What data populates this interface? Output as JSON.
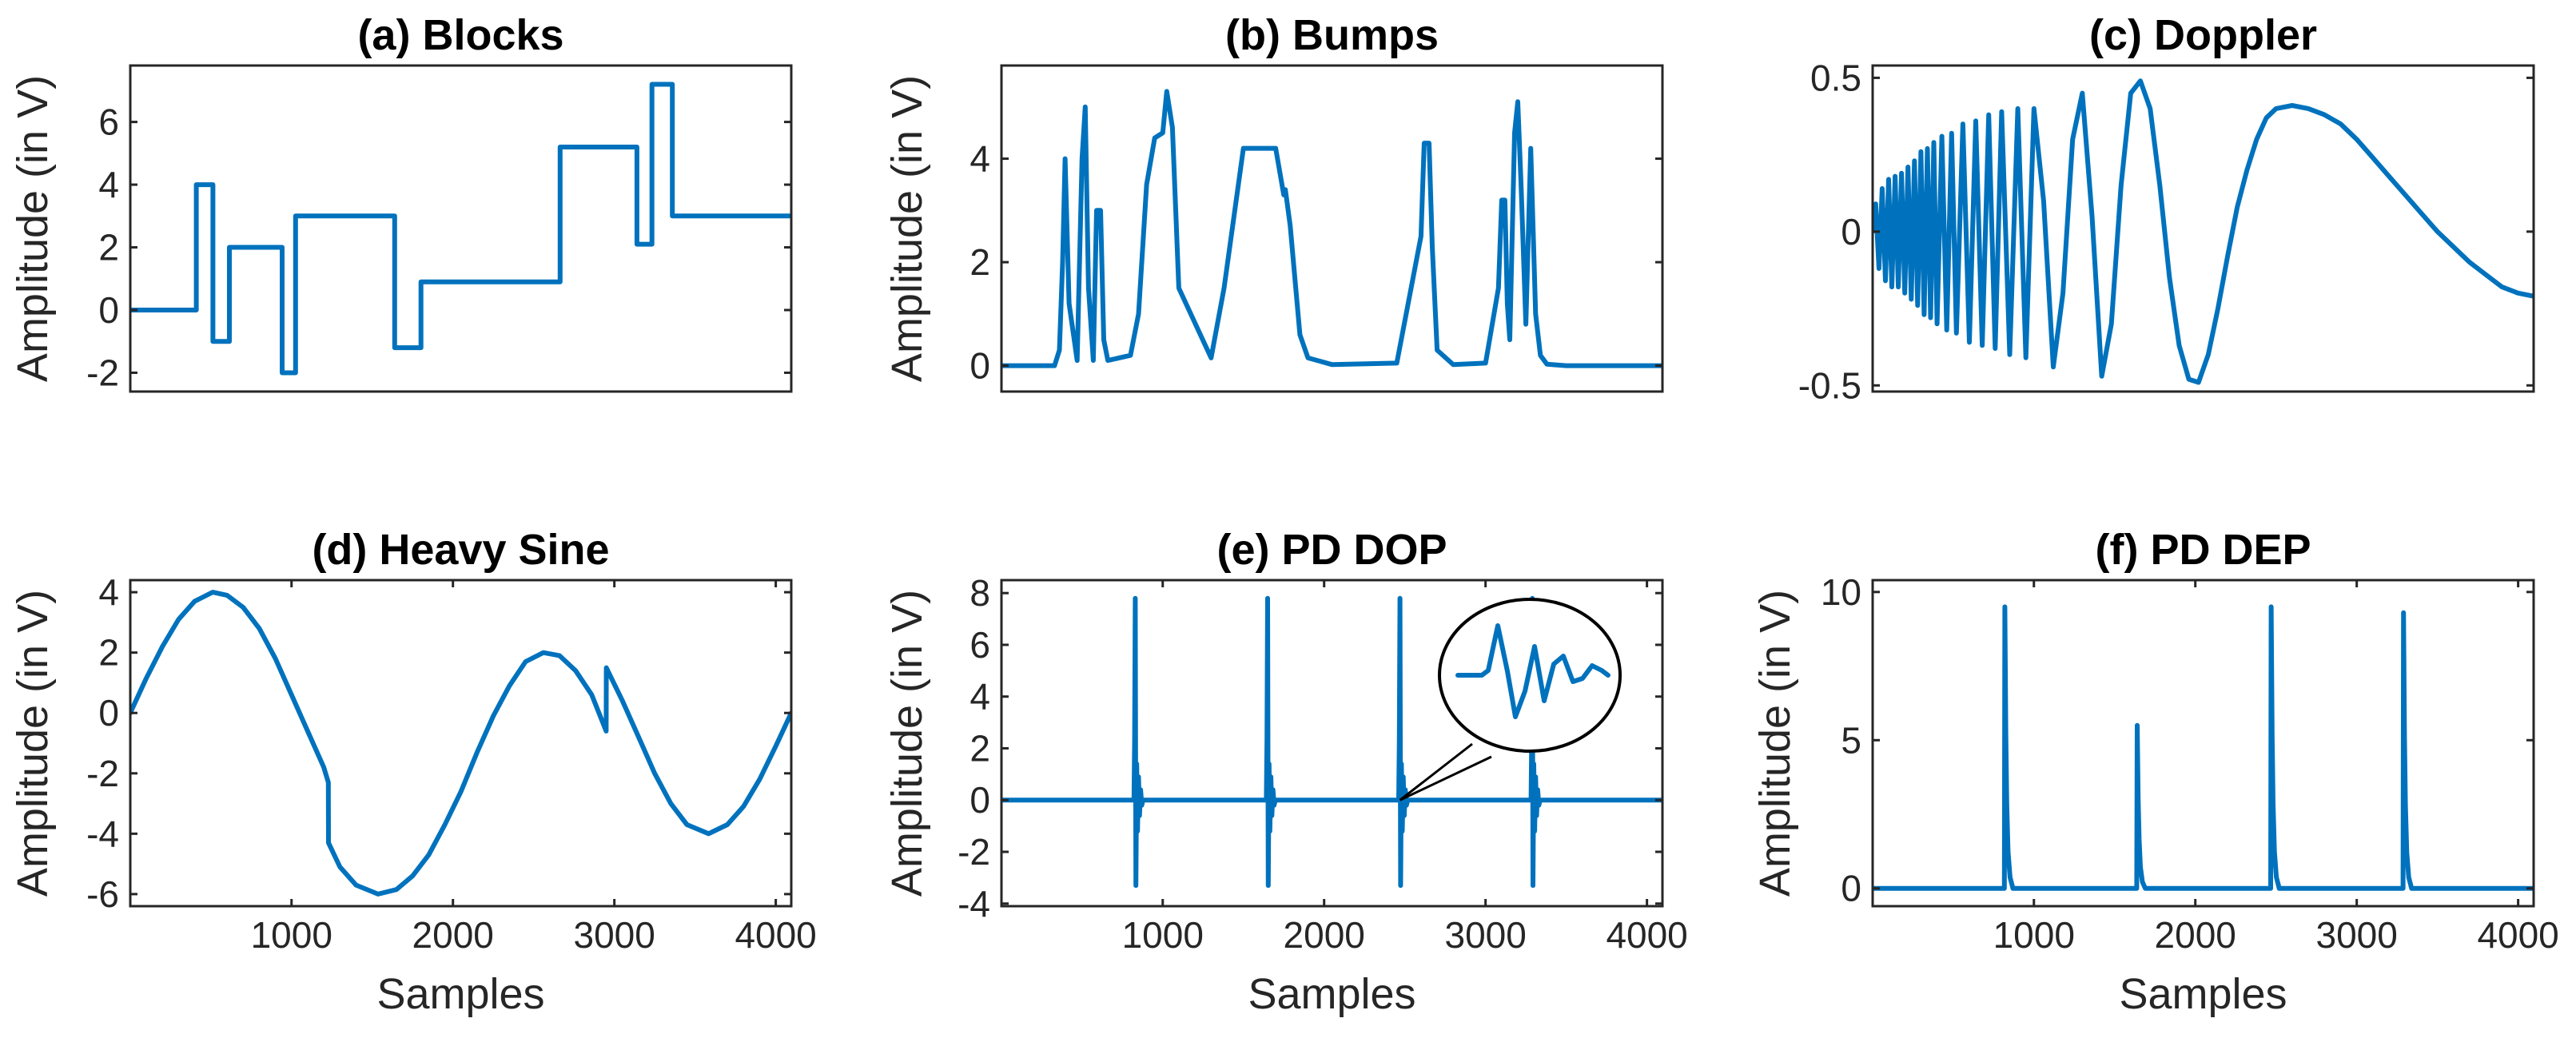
{
  "colors": {
    "series": "#0072BD",
    "axis": "#262626"
  },
  "chart_data": [
    {
      "type": "line",
      "title": "(a) Blocks",
      "xlabel": "",
      "ylabel": "Amplitude (in V)",
      "xlim": [
        1,
        4096
      ],
      "ylim": [
        -2.6,
        7.8
      ],
      "yticks": [
        6,
        4,
        2,
        0,
        -2
      ],
      "ytick_labels": [
        "6",
        "4",
        "2",
        "0",
        "-2"
      ],
      "xticks": [],
      "xtick_labels": [],
      "x": [
        1,
        410,
        410,
        513,
        513,
        615,
        615,
        942,
        942,
        1025,
        1025,
        1639,
        1639,
        1802,
        1802,
        2664,
        2664,
        3140,
        3140,
        3233,
        3233,
        3359,
        3359,
        4096
      ],
      "y": [
        0,
        0,
        4,
        4,
        -1,
        -1,
        2,
        2,
        -2,
        -2,
        3,
        3,
        -1.2,
        -1.2,
        0.9,
        0.9,
        5.2,
        5.2,
        2.1,
        2.1,
        7.2,
        7.2,
        3,
        3
      ]
    },
    {
      "type": "line",
      "title": "(b) Bumps",
      "xlabel": "",
      "ylabel": "Amplitude (in V)",
      "xlim": [
        1,
        4096
      ],
      "ylim": [
        -0.5,
        5.8
      ],
      "yticks": [
        4,
        2,
        0
      ],
      "ytick_labels": [
        "4",
        "2",
        "0"
      ],
      "xticks": [],
      "xtick_labels": [],
      "x": [
        1,
        330,
        360,
        380,
        395,
        420,
        470,
        500,
        520,
        540,
        570,
        590,
        615,
        635,
        660,
        800,
        850,
        900,
        950,
        1000,
        1025,
        1060,
        1100,
        1300,
        1380,
        1500,
        1600,
        1700,
        1750,
        1760,
        1790,
        1850,
        1900,
        2050,
        2450,
        2600,
        2620,
        2650,
        2670,
        2700,
        2800,
        3000,
        3080,
        3100,
        3120,
        3135,
        3150,
        3180,
        3200,
        3220,
        3250,
        3280,
        3310,
        3340,
        3380,
        3500,
        4096
      ],
      "y": [
        0,
        0,
        0.3,
        2,
        4,
        1.2,
        0.1,
        4,
        5,
        1.5,
        0.1,
        3,
        3,
        0.5,
        0.1,
        0.2,
        1,
        3.5,
        4.4,
        4.5,
        5.3,
        4.6,
        1.5,
        0.15,
        1.5,
        4.2,
        4.2,
        4.2,
        3.3,
        3.4,
        2.7,
        0.6,
        0.15,
        0.02,
        0.05,
        2.5,
        4.3,
        4.3,
        2.3,
        0.3,
        0.02,
        0.05,
        1.5,
        3.2,
        3.2,
        1.2,
        0.5,
        4.5,
        5.1,
        3.5,
        0.8,
        4.2,
        1,
        0.2,
        0.03,
        0,
        0
      ]
    },
    {
      "type": "line",
      "title": "(c) Doppler",
      "xlabel": "",
      "ylabel": "",
      "xlim": [
        1,
        4096
      ],
      "ylim": [
        -0.52,
        0.54
      ],
      "yticks": [
        0.5,
        0,
        -0.5
      ],
      "ytick_labels": [
        "0.5",
        "0",
        "-0.5"
      ],
      "xticks": [],
      "xtick_labels": [],
      "x": [
        1,
        20,
        40,
        60,
        80,
        100,
        120,
        140,
        160,
        180,
        200,
        220,
        240,
        260,
        280,
        300,
        320,
        340,
        360,
        380,
        400,
        430,
        460,
        490,
        520,
        560,
        600,
        640,
        680,
        720,
        760,
        800,
        850,
        900,
        950,
        1000,
        1060,
        1120,
        1180,
        1240,
        1300,
        1360,
        1420,
        1480,
        1540,
        1600,
        1660,
        1720,
        1780,
        1840,
        1900,
        1960,
        2020,
        2080,
        2140,
        2200,
        2260,
        2320,
        2380,
        2440,
        2500,
        2600,
        2700,
        2800,
        2900,
        3000,
        3100,
        3200,
        3300,
        3400,
        3500,
        3600,
        3700,
        3800,
        3900,
        4000,
        4096
      ],
      "y": [
        0,
        0.09,
        -0.12,
        0.14,
        -0.16,
        0.17,
        -0.18,
        0.18,
        -0.18,
        0.19,
        -0.2,
        0.21,
        -0.22,
        0.23,
        -0.24,
        0.26,
        -0.27,
        0.27,
        -0.28,
        0.29,
        -0.3,
        0.31,
        -0.32,
        0.32,
        -0.33,
        0.35,
        -0.36,
        0.36,
        -0.37,
        0.38,
        -0.38,
        0.39,
        -0.4,
        0.4,
        -0.41,
        0.4,
        0.1,
        -0.44,
        -0.2,
        0.3,
        0.45,
        0.05,
        -0.47,
        -0.3,
        0.15,
        0.45,
        0.49,
        0.4,
        0.15,
        -0.15,
        -0.37,
        -0.48,
        -0.49,
        -0.4,
        -0.25,
        -0.08,
        0.08,
        0.2,
        0.3,
        0.37,
        0.4,
        0.41,
        0.4,
        0.38,
        0.35,
        0.3,
        0.24,
        0.18,
        0.12,
        0.06,
        0.0,
        -0.05,
        -0.1,
        -0.14,
        -0.18,
        -0.2,
        -0.21
      ]
    },
    {
      "type": "line",
      "title": "(d) Heavy Sine",
      "xlabel": "Samples",
      "ylabel": "Amplitude (in V)",
      "xlim": [
        1,
        4096
      ],
      "ylim": [
        -6.4,
        4.4
      ],
      "yticks": [
        4,
        2,
        0,
        -2,
        -4,
        -6
      ],
      "ytick_labels": [
        "4",
        "2",
        "0",
        "-2",
        "-4",
        "-6"
      ],
      "xticks": [
        1000,
        2000,
        3000,
        4000
      ],
      "xtick_labels": [
        "1000",
        "2000",
        "3000",
        "4000"
      ],
      "x": [
        1,
        100,
        200,
        300,
        400,
        512,
        600,
        700,
        800,
        900,
        1000,
        1100,
        1200,
        1228,
        1229,
        1300,
        1400,
        1536,
        1650,
        1750,
        1850,
        1950,
        2050,
        2150,
        2250,
        2350,
        2450,
        2560,
        2660,
        2760,
        2860,
        2949,
        2950,
        3050,
        3150,
        3250,
        3350,
        3450,
        3584,
        3700,
        3800,
        3900,
        4000,
        4096
      ],
      "y": [
        0,
        1.15,
        2.2,
        3.1,
        3.7,
        4,
        3.9,
        3.5,
        2.8,
        1.8,
        0.6,
        -0.6,
        -1.8,
        -2.3,
        -4.3,
        -5.1,
        -5.7,
        -6,
        -5.85,
        -5.4,
        -4.7,
        -3.7,
        -2.6,
        -1.3,
        -0.1,
        0.9,
        1.7,
        2,
        1.9,
        1.4,
        0.6,
        -0.6,
        1.5,
        0.4,
        -0.8,
        -2,
        -3,
        -3.7,
        -4,
        -3.7,
        -3.1,
        -2.2,
        -1.1,
        0
      ]
    },
    {
      "type": "line",
      "title": "(e) PD DOP",
      "xlabel": "Samples",
      "ylabel": "Amplitude (in V)",
      "xlim": [
        1,
        4096
      ],
      "ylim": [
        -4.1,
        8.5
      ],
      "yticks": [
        8,
        6,
        4,
        2,
        0,
        -2,
        -4
      ],
      "ytick_labels": [
        "8",
        "6",
        "4",
        "2",
        "0",
        "-2",
        "-4"
      ],
      "xticks": [
        1000,
        2000,
        3000,
        4000
      ],
      "xtick_labels": [
        "1000",
        "2000",
        "3000",
        "4000"
      ],
      "pulse_positions": [
        830,
        1650,
        2470,
        3290
      ],
      "pulse_peak": 7.8,
      "pulse_trough": -3.3
    },
    {
      "type": "line",
      "title": "(f) PD DEP",
      "xlabel": "Samples",
      "ylabel": "Amplitude (in V)",
      "xlim": [
        1,
        4096
      ],
      "ylim": [
        -0.6,
        10.4
      ],
      "yticks": [
        10,
        5,
        0
      ],
      "ytick_labels": [
        "10",
        "5",
        "0"
      ],
      "xticks": [
        1000,
        2000,
        3000,
        4000
      ],
      "xtick_labels": [
        "1000",
        "2000",
        "3000",
        "4000"
      ],
      "pulse_positions": [
        820,
        1640,
        2470,
        3290
      ],
      "pulse_peaks": [
        9.5,
        5.5,
        9.5,
        9.3
      ]
    }
  ]
}
